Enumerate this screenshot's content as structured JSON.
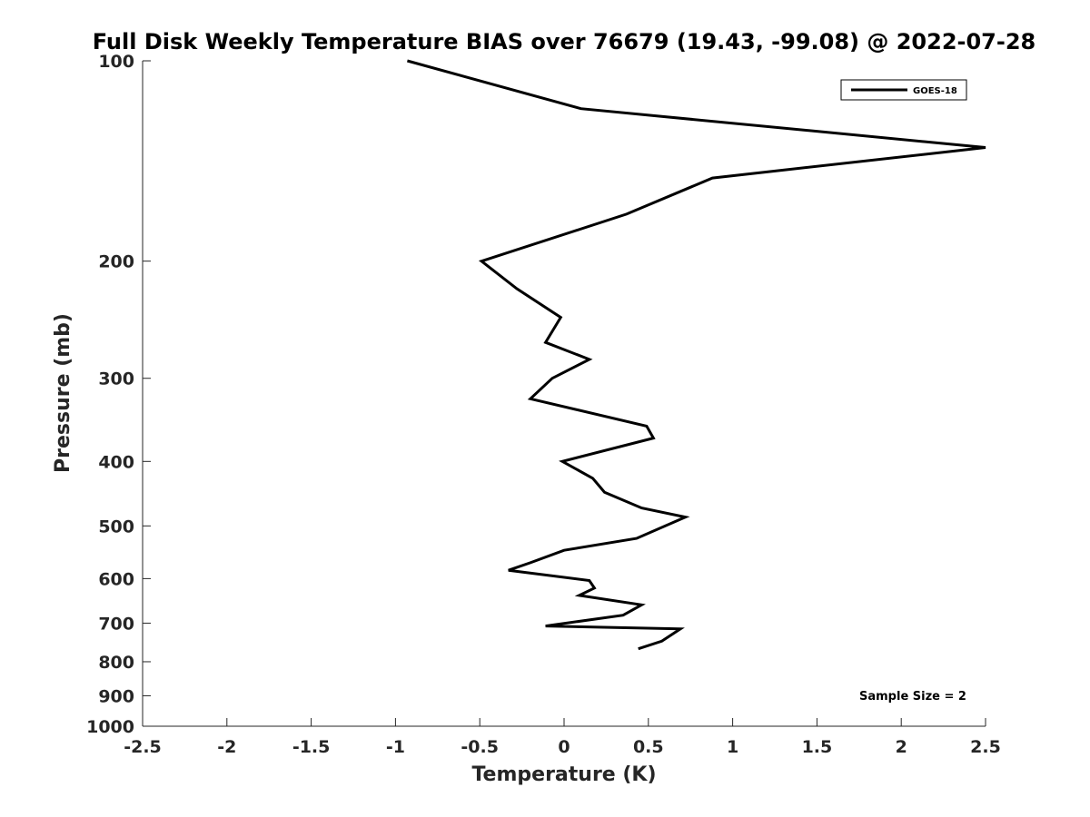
{
  "chart_data": {
    "type": "line",
    "title": "Full Disk Weekly Temperature BIAS over 76679 (19.43, -99.08) @ 2022-07-28",
    "xlabel": "Temperature (K)",
    "ylabel": "Pressure (mb)",
    "xlim": [
      -2.5,
      2.5
    ],
    "ylim": [
      1000,
      100
    ],
    "yscale": "log",
    "y_reversed": true,
    "grid": false,
    "legend_position": "top-right",
    "x_ticks": [
      -2.5,
      -2,
      -1.5,
      -1,
      -0.5,
      0,
      0.5,
      1,
      1.5,
      2,
      2.5
    ],
    "x_tick_labels": [
      "-2.5",
      "-2",
      "-1.5",
      "-1",
      "-0.5",
      "0",
      "0.5",
      "1",
      "1.5",
      "2",
      "2.5"
    ],
    "y_ticks": [
      100,
      200,
      300,
      400,
      500,
      600,
      700,
      800,
      900,
      1000
    ],
    "y_tick_labels": [
      "100",
      "200",
      "300",
      "400",
      "500",
      "600",
      "700",
      "800",
      "900",
      "1000"
    ],
    "series": [
      {
        "name": "GOES-18",
        "color": "#000000",
        "x": [
          -0.93,
          0.1,
          2.5,
          0.88,
          0.37,
          -0.49,
          -0.28,
          -0.02,
          -0.11,
          0.15,
          -0.07,
          -0.2,
          0.49,
          0.53,
          -0.01,
          0.17,
          0.24,
          0.46,
          0.72,
          0.43,
          0.0,
          -0.2,
          -0.33,
          0.15,
          0.18,
          0.09,
          0.46,
          0.35,
          -0.11,
          0.69,
          0.58,
          0.44
        ],
        "y": [
          100,
          118,
          135,
          150,
          170,
          200,
          220,
          243,
          265,
          281,
          300,
          322,
          354,
          369,
          400,
          424,
          445,
          470,
          485,
          522,
          544,
          568,
          583,
          604,
          620,
          636,
          657,
          681,
          707,
          714,
          745,
          765
        ]
      }
    ],
    "annotations": [
      "Sample Size = 2"
    ]
  }
}
